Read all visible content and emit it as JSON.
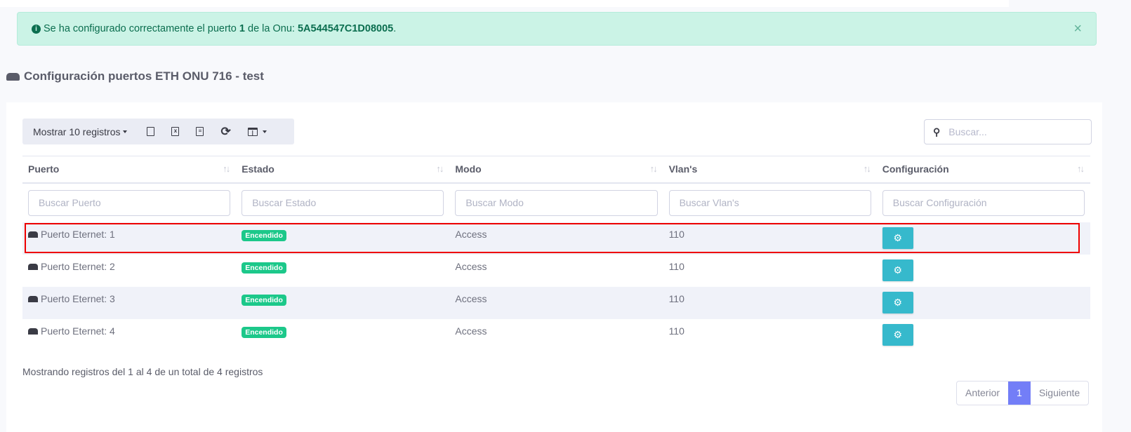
{
  "alert": {
    "prefix": "Se ha configurado correctamente el puerto",
    "port": "1",
    "middle": "de la Onu:",
    "onu": "5A544547C1D08005",
    "suffix": ".",
    "close": "×"
  },
  "title": "Configuración puertos ETH ONU 716 - test",
  "toolbar": {
    "length_label": "Mostrar 10 registros",
    "icons": [
      "copy-icon",
      "excel-icon",
      "csv-icon",
      "refresh-icon",
      "columns-icon"
    ]
  },
  "search": {
    "placeholder": "Buscar..."
  },
  "columns": [
    "Puerto",
    "Estado",
    "Modo",
    "Vlan's",
    "Configuración"
  ],
  "filters": [
    "Buscar Puerto",
    "Buscar Estado",
    "Buscar Modo",
    "Buscar Vlan's",
    "Buscar Configuración"
  ],
  "rows": [
    {
      "port": "Puerto Eternet: 1",
      "status": "Encendido",
      "mode": "Access",
      "vlan": "110"
    },
    {
      "port": "Puerto Eternet: 2",
      "status": "Encendido",
      "mode": "Access",
      "vlan": "110"
    },
    {
      "port": "Puerto Eternet: 3",
      "status": "Encendido",
      "mode": "Access",
      "vlan": "110"
    },
    {
      "port": "Puerto Eternet: 4",
      "status": "Encendido",
      "mode": "Access",
      "vlan": "110"
    }
  ],
  "info": "Mostrando registros del 1 al 4 de un total de 4 registros",
  "pagination": {
    "prev": "Anterior",
    "current": "1",
    "next": "Siguiente"
  },
  "colors": {
    "success_bg": "#cbf3e6",
    "badge": "#1cc88a",
    "config_button": "#36b9cc",
    "active_page": "#737ef7",
    "highlight": "#ee0000"
  }
}
